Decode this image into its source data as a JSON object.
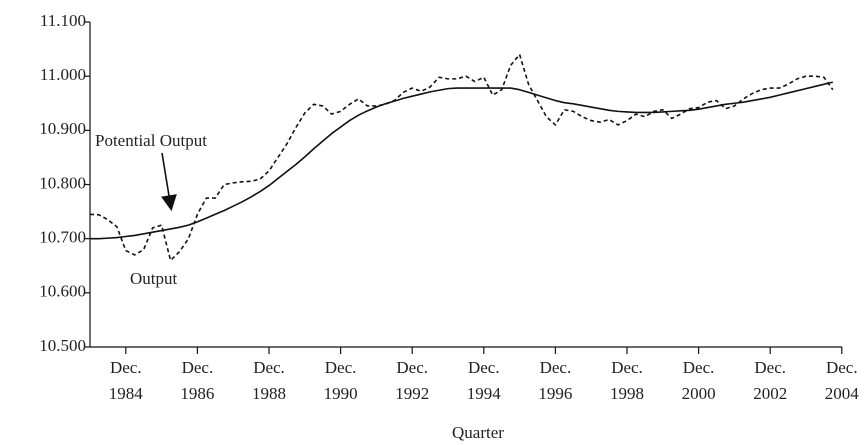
{
  "chart_data": {
    "type": "line",
    "x_label": "Quarter",
    "categories": [
      null,
      null,
      null,
      null,
      "Dec. 1984",
      null,
      null,
      null,
      null,
      null,
      null,
      null,
      "Dec. 1986",
      null,
      null,
      null,
      null,
      null,
      null,
      null,
      "Dec. 1988",
      null,
      null,
      null,
      null,
      null,
      null,
      null,
      "Dec. 1990",
      null,
      null,
      null,
      null,
      null,
      null,
      null,
      "Dec. 1992",
      null,
      null,
      null,
      null,
      null,
      null,
      null,
      "Dec. 1994",
      null,
      null,
      null,
      null,
      null,
      null,
      null,
      "Dec. 1996",
      null,
      null,
      null,
      null,
      null,
      null,
      null,
      "Dec. 1998",
      null,
      null,
      null,
      null,
      null,
      null,
      null,
      "Dec. 2000",
      null,
      null,
      null,
      null,
      null,
      null,
      null,
      "Dec. 2002",
      null,
      null,
      null,
      null,
      null,
      null,
      null,
      "Dec. 2004"
    ],
    "series": [
      {
        "name": "Potential Output",
        "color": "#111111",
        "dashed": false,
        "values": [
          10.7,
          10.7,
          10.701,
          10.702,
          10.704,
          10.706,
          10.709,
          10.712,
          10.715,
          10.718,
          10.721,
          10.725,
          10.731,
          10.738,
          10.745,
          10.752,
          10.76,
          10.768,
          10.777,
          10.787,
          10.798,
          10.811,
          10.824,
          10.837,
          10.851,
          10.866,
          10.88,
          10.894,
          10.906,
          10.918,
          10.928,
          10.936,
          10.943,
          10.949,
          10.954,
          10.959,
          10.963,
          10.967,
          10.971,
          10.974,
          10.977,
          10.978,
          10.978,
          10.978,
          10.978,
          10.978,
          10.978,
          10.978,
          10.975,
          10.97,
          10.965,
          10.96,
          10.955,
          10.951,
          10.949,
          10.946,
          10.943,
          10.94,
          10.937,
          10.935,
          10.934,
          10.933,
          10.933,
          10.933,
          10.934,
          10.935,
          10.936,
          10.937,
          10.939,
          10.942,
          10.945,
          10.948,
          10.95,
          10.952,
          10.955,
          10.958,
          10.961,
          10.965,
          10.969,
          10.973,
          10.977,
          10.981,
          10.985,
          10.989,
          null
        ]
      },
      {
        "name": "Output",
        "color": "#111111",
        "dashed": true,
        "values": [
          10.745,
          10.744,
          10.735,
          10.722,
          10.678,
          10.67,
          10.68,
          10.72,
          10.725,
          10.66,
          10.676,
          10.7,
          10.745,
          10.775,
          10.775,
          10.8,
          10.803,
          10.805,
          10.806,
          10.81,
          10.825,
          10.85,
          10.875,
          10.905,
          10.932,
          10.948,
          10.945,
          10.93,
          10.935,
          10.948,
          10.958,
          10.945,
          10.945,
          10.948,
          10.955,
          10.97,
          10.978,
          10.972,
          10.98,
          10.998,
          10.995,
          10.995,
          11.0,
          10.99,
          10.998,
          10.965,
          10.975,
          11.02,
          11.04,
          10.985,
          10.955,
          10.925,
          10.91,
          10.938,
          10.935,
          10.925,
          10.918,
          10.915,
          10.92,
          10.91,
          10.918,
          10.93,
          10.925,
          10.935,
          10.938,
          10.922,
          10.93,
          10.94,
          10.942,
          10.952,
          10.955,
          10.94,
          10.945,
          10.958,
          10.968,
          10.975,
          10.978,
          10.978,
          10.985,
          10.995,
          11.0,
          11.0,
          10.998,
          10.975,
          null
        ]
      }
    ],
    "ylim": [
      10.5,
      11.1
    ],
    "yticks": [
      {
        "value": 10.5,
        "label": "10.500"
      },
      {
        "value": 10.6,
        "label": "10.600"
      },
      {
        "value": 10.7,
        "label": "10.700"
      },
      {
        "value": 10.8,
        "label": "10.800"
      },
      {
        "value": 10.9,
        "label": "10.900"
      },
      {
        "value": 11.0,
        "label": "11.000"
      },
      {
        "value": 11.1,
        "label": "11.100"
      }
    ],
    "grid": false
  }
}
